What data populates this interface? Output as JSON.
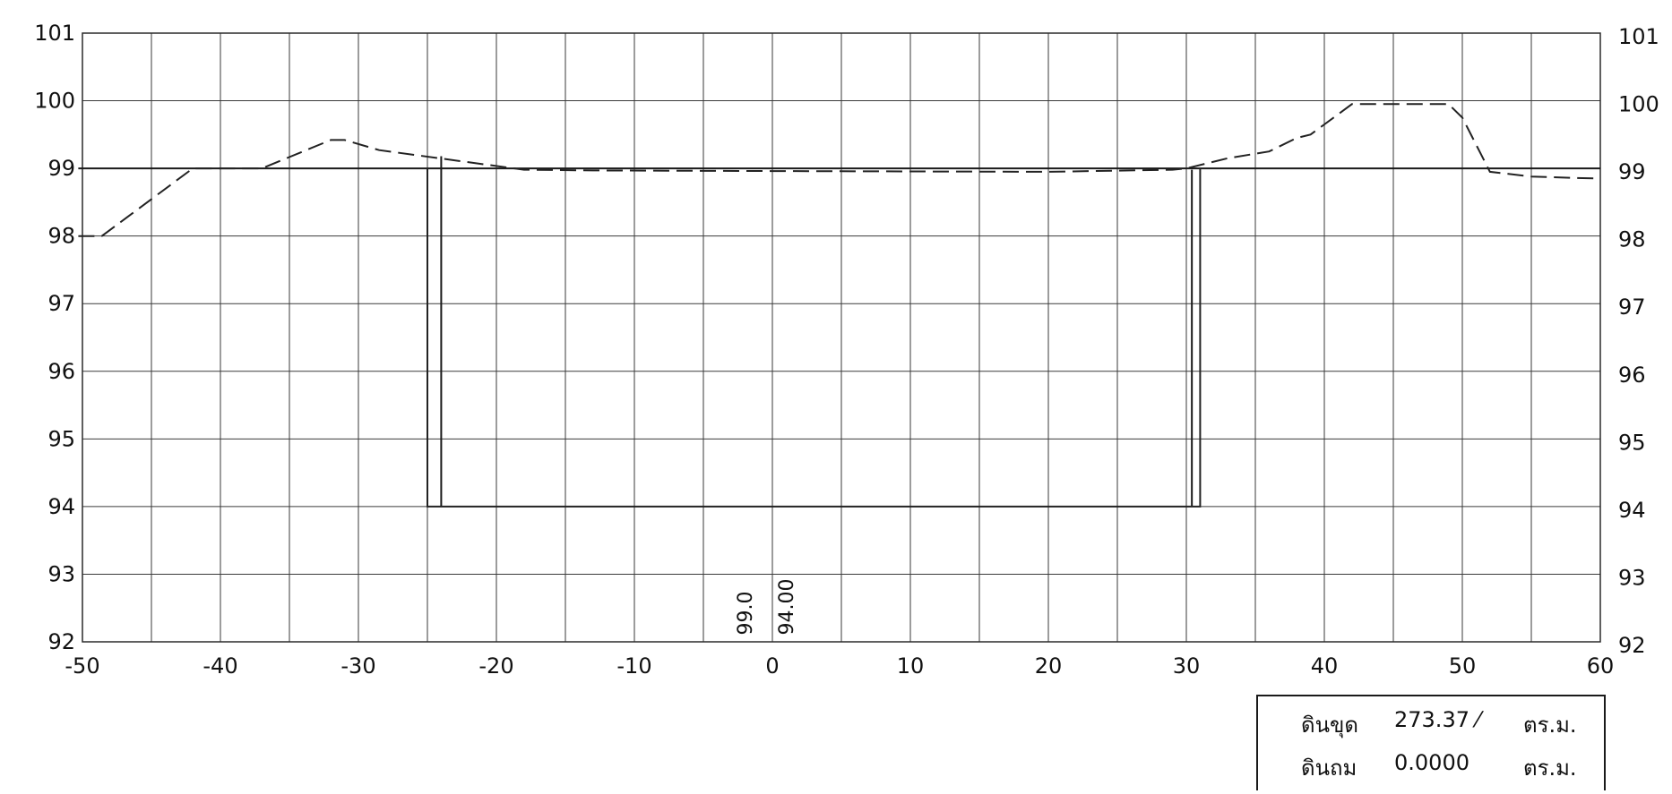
{
  "chart_data": {
    "type": "line",
    "x_range": [
      -50,
      60
    ],
    "y_range": [
      92,
      101
    ],
    "x_ticks": [
      -50,
      -40,
      -30,
      -20,
      -10,
      0,
      10,
      20,
      30,
      40,
      50,
      60
    ],
    "y_ticks": [
      92,
      93,
      94,
      95,
      96,
      97,
      98,
      99,
      100,
      101
    ],
    "grid": true,
    "legend": "none",
    "series": [
      {
        "style": "dashed",
        "color": "#222222",
        "points": [
          [
            -50.3,
            98.0
          ],
          [
            -48.6,
            98.0
          ],
          [
            -42.0,
            99.0
          ],
          [
            -37.0,
            99.0
          ],
          [
            -32.0,
            99.42
          ],
          [
            -31.0,
            99.42
          ],
          [
            -28.5,
            99.27
          ],
          [
            -18.0,
            98.98
          ],
          [
            -13.0,
            98.97
          ],
          [
            0.0,
            98.96
          ],
          [
            20.0,
            98.95
          ],
          [
            29.0,
            98.98
          ],
          [
            30.0,
            99.0
          ],
          [
            33.0,
            99.15
          ],
          [
            36.0,
            99.25
          ],
          [
            38.0,
            99.45
          ],
          [
            39.0,
            99.5
          ],
          [
            40.0,
            99.65
          ],
          [
            42.0,
            99.95
          ],
          [
            49.0,
            99.95
          ],
          [
            50.0,
            99.75
          ],
          [
            52.0,
            98.95
          ],
          [
            55.0,
            98.88
          ],
          [
            58.0,
            98.86
          ],
          [
            60.0,
            98.85
          ]
        ]
      },
      {
        "style": "solid",
        "color": "#222222",
        "points": [
          [
            -25.0,
            99.0
          ],
          [
            -25.0,
            94.0
          ],
          [
            31.0,
            94.0
          ],
          [
            31.0,
            99.0
          ]
        ]
      }
    ],
    "extra_lines": [
      {
        "style": "solid",
        "from": [
          -24.0,
          94.0
        ],
        "to": [
          -24.0,
          99.18
        ]
      },
      {
        "style": "solid",
        "from": [
          30.4,
          94.0
        ],
        "to": [
          30.4,
          98.98
        ]
      },
      {
        "style": "solid",
        "from": [
          -50.3,
          99.0
        ],
        "to": [
          60.0,
          99.0
        ]
      }
    ],
    "annotations": [
      {
        "text": "99.0",
        "x": -1.5,
        "y": 92.1,
        "rotation": -90
      },
      {
        "text": "94.00",
        "x": 1.5,
        "y": 92.1,
        "rotation": -90
      }
    ]
  },
  "volume_table": {
    "rows": [
      {
        "label": "ดินขุด",
        "value": "273.37 ⁄",
        "unit": "ตร.ม."
      },
      {
        "label": "ดินถม",
        "value": "0.0000",
        "unit": "ตร.ม."
      }
    ]
  }
}
